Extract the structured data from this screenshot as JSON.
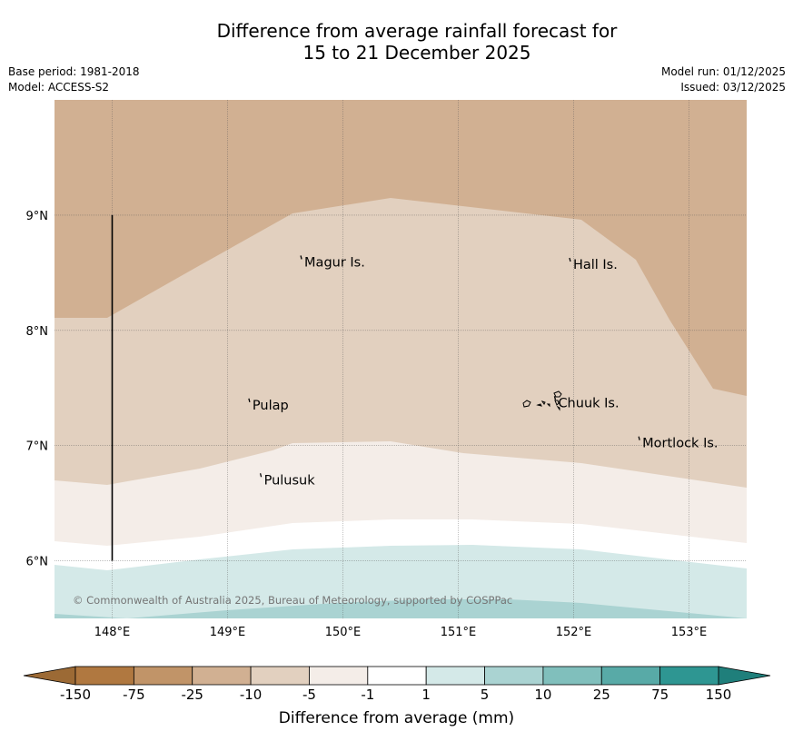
{
  "title": {
    "line1": "Difference from average rainfall forecast for",
    "line2": "15 to 21 December 2025"
  },
  "meta_left": {
    "base_period": "Base period: 1981-2018",
    "model": "Model: ACCESS-S2"
  },
  "meta_right": {
    "model_run": "Model run: 01/12/2025",
    "issued": "Issued: 03/12/2025"
  },
  "map": {
    "lon_range": [
      147.5,
      153.5
    ],
    "lat_range": [
      5.5,
      10.0
    ],
    "lon_ticks": [
      148,
      149,
      150,
      151,
      152,
      153
    ],
    "lon_tick_labels": [
      "148°E",
      "149°E",
      "150°E",
      "151°E",
      "152°E",
      "153°E"
    ],
    "lat_ticks": [
      6,
      7,
      8,
      9
    ],
    "lat_tick_labels": [
      "6°N",
      "7°N",
      "8°N",
      "9°N"
    ],
    "places": [
      {
        "name": "Magur Is.",
        "lon": 149.65,
        "lat": 8.57
      },
      {
        "name": "Hall Is.",
        "lon": 151.98,
        "lat": 8.55
      },
      {
        "name": "Pulap",
        "lon": 149.2,
        "lat": 7.33
      },
      {
        "name": "Chuuk Is.",
        "lon": 151.85,
        "lat": 7.35
      },
      {
        "name": "Mortlock Is.",
        "lon": 152.58,
        "lat": 7.0
      },
      {
        "name": "Pulusuk",
        "lon": 149.3,
        "lat": 6.68
      }
    ],
    "boundary_line": {
      "lon": 148.0,
      "lat_from": 6.0,
      "lat_to": 9.0
    },
    "copyright": "© Commonwealth of Australia 2025, Bureau of Meteorology, supported by COSPPac"
  },
  "colorbar": {
    "ticks": [
      "-150",
      "-75",
      "-25",
      "-10",
      "-5",
      "-1",
      "1",
      "5",
      "10",
      "25",
      "75",
      "150"
    ],
    "colors": [
      "#b07840",
      "#c19468",
      "#d1b092",
      "#e2d0bf",
      "#f4ede8",
      "#ffffff",
      "#d4e9e8",
      "#aad3d2",
      "#80bfbc",
      "#58aaa7",
      "#2e9692"
    ],
    "under_color": "#9c6a35",
    "over_color": "#1f7f7b",
    "label": "Difference from average (mm)"
  }
}
